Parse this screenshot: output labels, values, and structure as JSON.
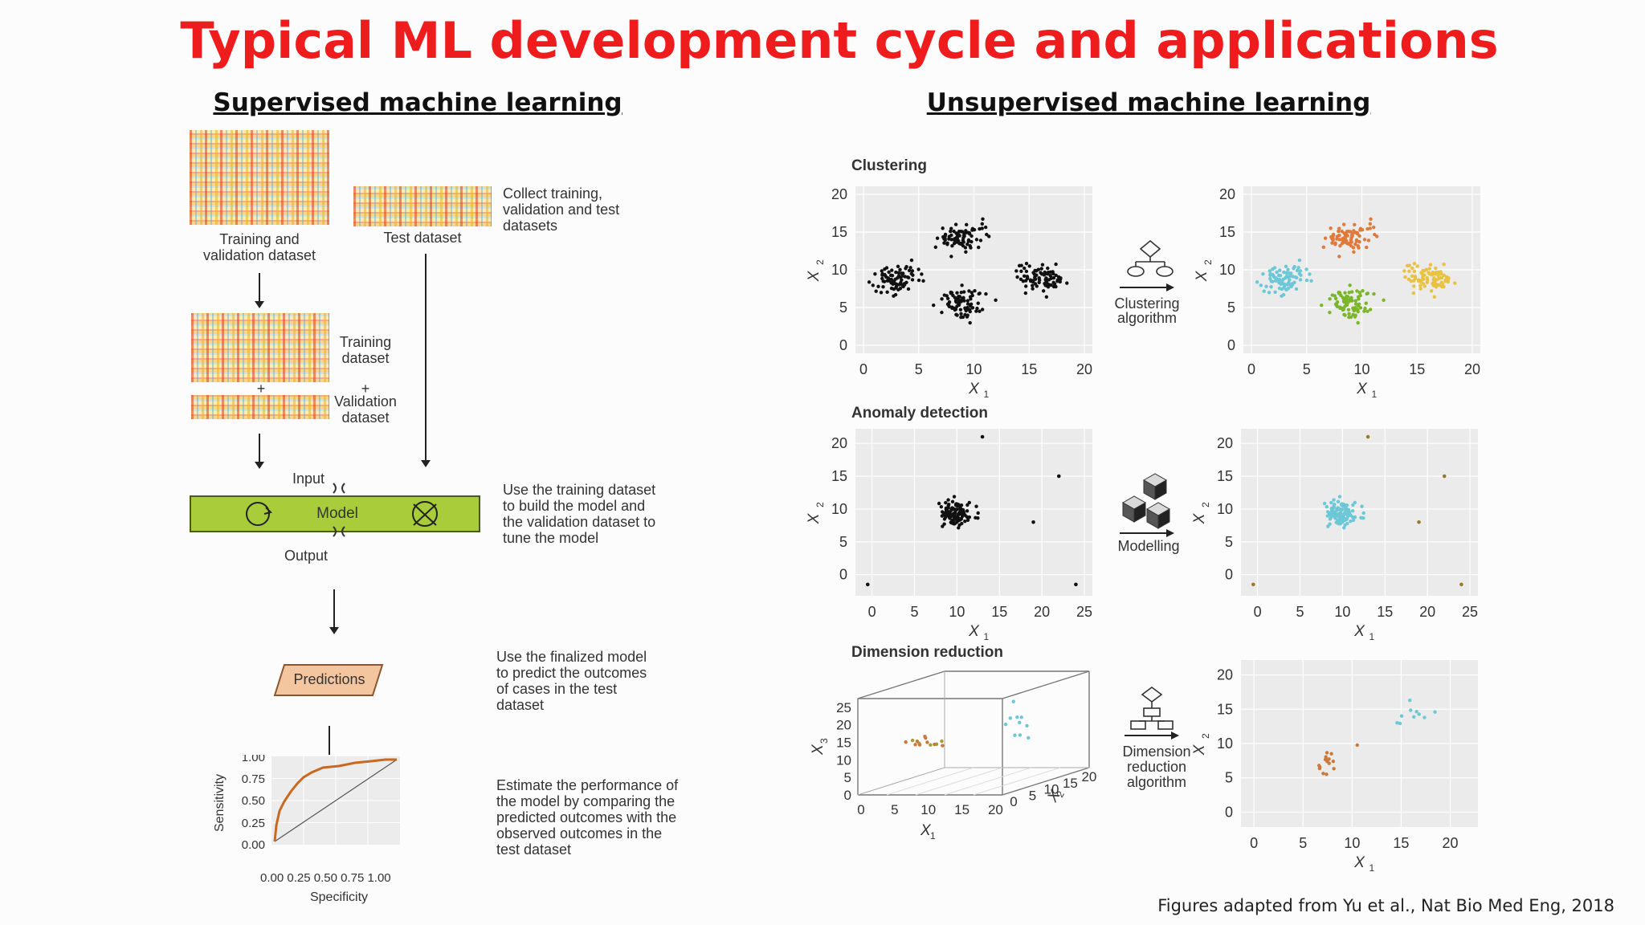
{
  "title": "Typical ML development cycle and applications",
  "supervised": {
    "heading": "Supervised machine learning",
    "training_validation_label": "Training and validation dataset",
    "test_dataset_label": "Test dataset",
    "collect_note": "Collect training, validation and test datasets",
    "training_dataset_label": "Training dataset",
    "plus": "+",
    "validation_dataset_label": "Validation dataset",
    "input_label": "Input",
    "model_label": "Model",
    "output_label": "Output",
    "train_note": "Use the training dataset to build the model and the validation dataset to tune the model",
    "predictions_label": "Predictions",
    "predict_note": "Use the finalized model to predict the outcomes of cases in the test dataset",
    "estimate_note": "Estimate the performance of the model by comparing the predicted outcomes with the observed outcomes in the test dataset",
    "roc": {
      "xlabel": "Specificity",
      "ylabel": "Sensitivity",
      "ticks": [
        "0.00",
        "0.25",
        "0.50",
        "0.75",
        "1.00"
      ],
      "x_tick_text": "0.00 0.25 0.50 0.75 1.00"
    }
  },
  "unsupervised": {
    "heading": "Unsupervised machine learning",
    "clustering": {
      "title": "Clustering",
      "algo_label": "Clustering algorithm",
      "xticks": [
        "0",
        "5",
        "10",
        "15",
        "20"
      ],
      "yticks": [
        "0",
        "5",
        "10",
        "15",
        "20"
      ],
      "xlabel": "X",
      "xsub": "1",
      "ylabel": "X",
      "ysub": "2"
    },
    "anomaly": {
      "title": "Anomaly detection",
      "algo_label": "Modelling",
      "xticks": [
        "0",
        "5",
        "10",
        "15",
        "20",
        "25"
      ],
      "yticks": [
        "0",
        "5",
        "10",
        "15",
        "20"
      ],
      "xlabel": "X",
      "xsub": "1",
      "ylabel": "X",
      "ysub": "2"
    },
    "dimred": {
      "title": "Dimension reduction",
      "algo_label": "Dimension reduction algorithm",
      "x3_ticks": [
        "0",
        "5",
        "10",
        "15",
        "20",
        "25"
      ],
      "x1_ticks": [
        "0",
        "5",
        "10",
        "15",
        "20"
      ],
      "x2_ticks": [
        "0",
        "5",
        "10",
        "15",
        "20"
      ],
      "out_xticks": [
        "0",
        "5",
        "10",
        "15",
        "20"
      ],
      "out_yticks": [
        "0",
        "5",
        "10",
        "15",
        "20"
      ],
      "xlabel": "X",
      "xsub": "1",
      "ylabel": "X",
      "ysub": "2",
      "zlabel": "X",
      "zsub": "3"
    },
    "cluster_colors": [
      "#6cc7d6",
      "#e07a3a",
      "#e8c240",
      "#7bb62a"
    ],
    "point_color": "#111111"
  },
  "credit": "Figures adapted from Yu et al., Nat Bio Med Eng, 2018"
}
